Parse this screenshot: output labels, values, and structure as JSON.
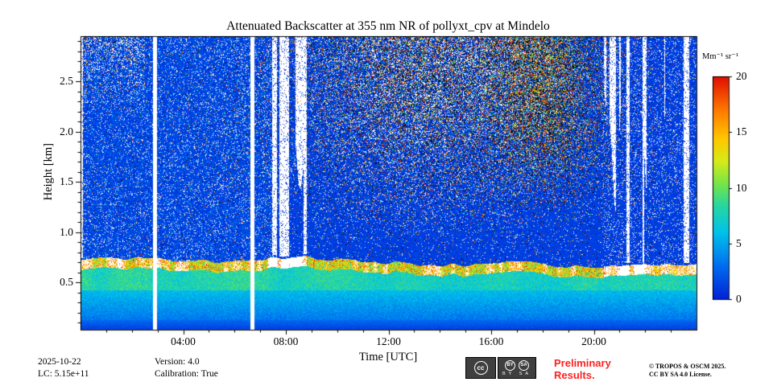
{
  "chart_data": {
    "type": "heatmap",
    "title": "Attenuated Backscatter at 355 nm NR of pollyxt_cpv at Mindelo",
    "xlabel": "Time [UTC]",
    "ylabel": "Height [km]",
    "colorbar_label": "Mm⁻¹ sr⁻¹",
    "colormap": "jet",
    "x_range_hours": [
      0,
      24
    ],
    "x_ticks": [
      "04:00",
      "08:00",
      "12:00",
      "16:00",
      "20:00"
    ],
    "x_tick_hours": [
      4,
      8,
      12,
      16,
      20
    ],
    "x_minor_tick_interval_hours": 1,
    "y_range_km": [
      0.03,
      2.95
    ],
    "y_ticks": [
      0.5,
      1.0,
      1.5,
      2.0,
      2.5
    ],
    "y_minor_tick_interval_km": 0.1,
    "color_range": [
      0,
      20
    ],
    "colorbar_ticks": [
      0,
      5,
      10,
      15,
      20
    ],
    "features": {
      "description": "Attenuated backscatter quicklook: strong aerosol layer below ~0.7 km (green/yellow, 5-10 Mm-1 sr-1), white cloud blobs at layer top, deep blue overlap region below 0.15 km, blue background (~0-2) aloft, dense daytime solar noise speckle above 1 km peaking 12:00-20:00, white cloud/data streaks in early morning, 07:30-08:45 and after 20:30, two full white data gaps.",
      "surface_layer_top_km": 0.72,
      "surface_layer_value": 8,
      "overlap_dark_below_km": 0.15,
      "background_value": 1,
      "cloud_band_km": [
        0.55,
        0.8
      ],
      "data_gaps_hours": [
        [
          2.82,
          2.98
        ],
        [
          6.6,
          6.76
        ]
      ],
      "daytime_noise_hours": [
        7.5,
        19.5
      ],
      "dark_noise_peak_hour": 18.2,
      "evening_cloud_streaks_hours": [
        20.4,
        24
      ],
      "morning_streaks_hours": [
        0.0,
        2.6
      ]
    }
  },
  "footer": {
    "date": "2025-10-22",
    "lc": "LC: 5.15e+11",
    "version": "Version: 4.0",
    "calibration": "Calibration: True",
    "preliminary_line1": "Preliminary",
    "preliminary_line2": "Results.",
    "copyright_line1": "© TROPOS & OSCM 2025.",
    "copyright_line2": "CC BY SA 4.0 License.",
    "license_badge": {
      "cc": "cc",
      "by": "BY",
      "sa": "SA"
    }
  },
  "colors": {
    "preliminary_red": "#ff2020",
    "gap_white": "#ffffff",
    "axis_black": "#000000"
  }
}
